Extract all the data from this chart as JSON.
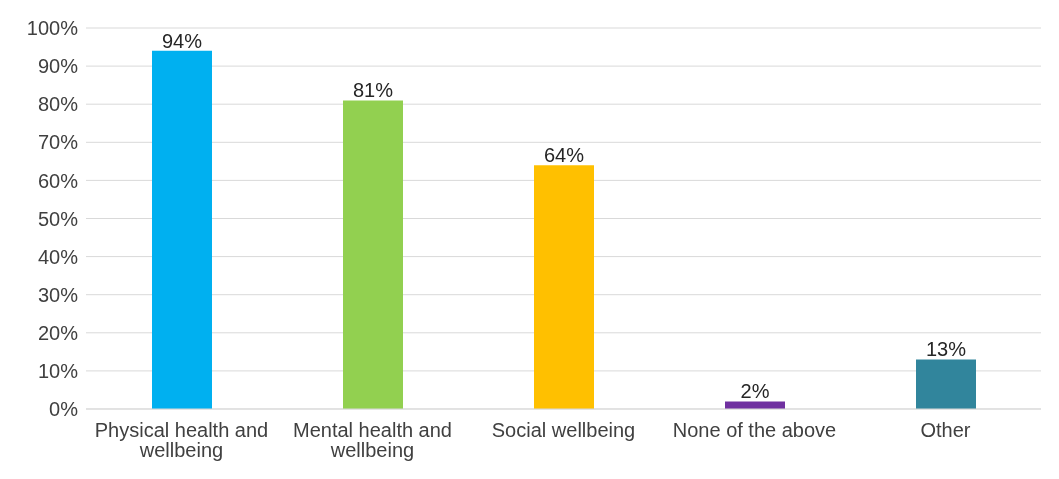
{
  "chart_data": {
    "type": "bar",
    "categories": [
      "Physical health and wellbeing",
      "Mental health and wellbeing",
      "Social wellbeing",
      "None of the above",
      "Other"
    ],
    "values": [
      94,
      81,
      64,
      2,
      13
    ],
    "colors": [
      "#00b0f0",
      "#92d050",
      "#ffc000",
      "#7030a0",
      "#31859c"
    ],
    "value_labels": [
      "94%",
      "81%",
      "64%",
      "2%",
      "13%"
    ],
    "ylim": [
      0,
      100
    ],
    "yticks": [
      {
        "value": 0,
        "label": "0%"
      },
      {
        "value": 10,
        "label": "10%"
      },
      {
        "value": 20,
        "label": "20%"
      },
      {
        "value": 30,
        "label": "30%"
      },
      {
        "value": 40,
        "label": "40%"
      },
      {
        "value": 50,
        "label": "50%"
      },
      {
        "value": 60,
        "label": "60%"
      },
      {
        "value": 70,
        "label": "70%"
      },
      {
        "value": 80,
        "label": "80%"
      },
      {
        "value": 90,
        "label": "90%"
      },
      {
        "value": 100,
        "label": "100%"
      }
    ],
    "grid": "y"
  }
}
